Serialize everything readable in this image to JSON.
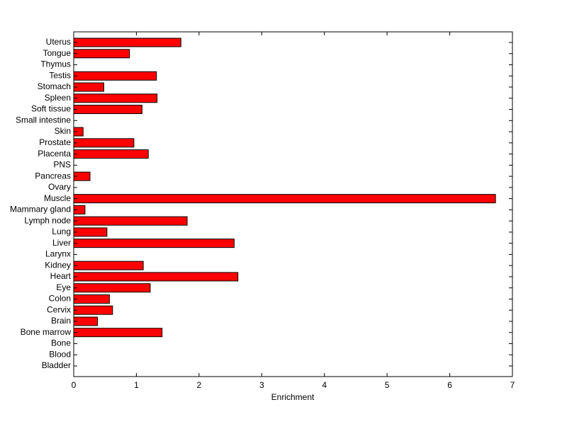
{
  "chart_data": {
    "type": "barh",
    "xlabel": "Enrichment",
    "categories": [
      "Bladder",
      "Blood",
      "Bone",
      "Bone marrow",
      "Brain",
      "Cervix",
      "Colon",
      "Eye",
      "Heart",
      "Kidney",
      "Larynx",
      "Liver",
      "Lung",
      "Lymph node",
      "Mammary gland",
      "Muscle",
      "Ovary",
      "Pancreas",
      "PNS",
      "Placenta",
      "Prostate",
      "Skin",
      "Small intestine",
      "Soft tissue",
      "Spleen",
      "Stomach",
      "Testis",
      "Thymus",
      "Tongue",
      "Uterus"
    ],
    "values": [
      0,
      0,
      0,
      1.41,
      0.38,
      0.62,
      0.57,
      1.22,
      2.62,
      1.11,
      0,
      2.56,
      0.53,
      1.81,
      0.18,
      6.73,
      0,
      0.26,
      0,
      1.19,
      0.96,
      0.15,
      0,
      1.09,
      1.33,
      0.48,
      1.32,
      0,
      0.89,
      1.71
    ],
    "color": "#ff0000",
    "xlim": [
      0,
      7
    ],
    "xticks": [
      0,
      1,
      2,
      3,
      4,
      5,
      6,
      7
    ]
  }
}
